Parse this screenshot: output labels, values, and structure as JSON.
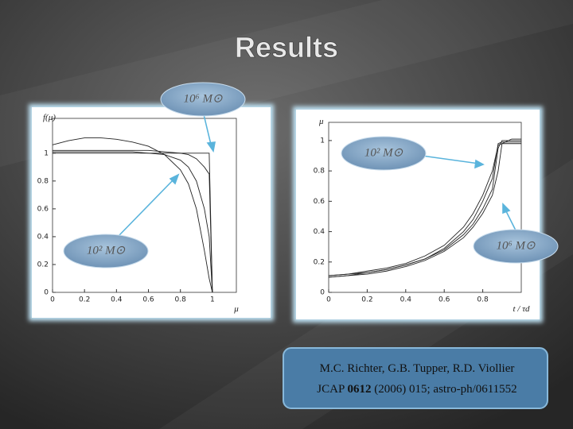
{
  "title": "Results",
  "chart_data": [
    {
      "type": "line",
      "ylabel": "f(μ)",
      "xlabel": "μ",
      "x": [
        0,
        0.1,
        0.2,
        0.3,
        0.4,
        0.5,
        0.6,
        0.7,
        0.8,
        0.85,
        0.9,
        0.95,
        0.98,
        1.0
      ],
      "series": [
        {
          "color": "#222222",
          "values": [
            1.0,
            1.0,
            1.0,
            1.0,
            1.0,
            1.0,
            1.0,
            1.0,
            1.0,
            1.0,
            1.0,
            1.0,
            1.0,
            0
          ]
        },
        {
          "color": "#222222",
          "values": [
            1.02,
            1.02,
            1.02,
            1.02,
            1.02,
            1.02,
            1.02,
            1.01,
            1.0,
            0.99,
            0.96,
            0.9,
            0.85,
            0
          ]
        },
        {
          "color": "#222222",
          "values": [
            1.01,
            1.01,
            1.01,
            1.01,
            1.01,
            1.01,
            1.0,
            0.99,
            0.95,
            0.9,
            0.8,
            0.6,
            0.4,
            0
          ]
        },
        {
          "color": "#222222",
          "values": [
            1.06,
            1.09,
            1.11,
            1.11,
            1.1,
            1.08,
            1.05,
            0.99,
            0.88,
            0.78,
            0.6,
            0.3,
            0.1,
            0
          ]
        }
      ],
      "xlim": [
        0,
        1.15
      ],
      "ylim": [
        0,
        1.25
      ],
      "xticks": [
        0,
        0.2,
        0.4,
        0.6,
        0.8,
        1
      ],
      "yticks": [
        0,
        0.2,
        0.4,
        0.6,
        0.8,
        1
      ]
    },
    {
      "type": "line",
      "ylabel": "μ",
      "xlabel": "t / τd",
      "x": [
        0,
        0.1,
        0.2,
        0.3,
        0.4,
        0.5,
        0.6,
        0.7,
        0.75,
        0.8,
        0.85,
        0.88,
        0.9,
        0.95,
        1.0
      ],
      "series": [
        {
          "color": "#222222",
          "values": [
            0.1,
            0.11,
            0.13,
            0.15,
            0.18,
            0.22,
            0.28,
            0.38,
            0.45,
            0.55,
            0.68,
            0.95,
            1.0,
            1.0,
            1.0
          ]
        },
        {
          "color": "#222222",
          "values": [
            0.11,
            0.12,
            0.13,
            0.15,
            0.18,
            0.22,
            0.29,
            0.4,
            0.48,
            0.6,
            0.75,
            0.98,
            0.99,
            0.99,
            0.99
          ]
        },
        {
          "color": "#222222",
          "values": [
            0.1,
            0.11,
            0.12,
            0.14,
            0.17,
            0.21,
            0.27,
            0.36,
            0.43,
            0.52,
            0.64,
            0.8,
            0.98,
            1.01,
            1.01
          ]
        },
        {
          "color": "#222222",
          "values": [
            0.11,
            0.12,
            0.14,
            0.16,
            0.19,
            0.24,
            0.31,
            0.43,
            0.52,
            0.64,
            0.8,
            0.97,
            0.98,
            0.98,
            0.98
          ]
        }
      ],
      "xlim": [
        0,
        1
      ],
      "ylim": [
        0,
        1.12
      ],
      "xticks": [
        0,
        0.2,
        0.4,
        0.6,
        0.8
      ],
      "yticks": [
        0,
        0.2,
        0.4,
        0.6,
        0.8,
        1
      ]
    }
  ],
  "callouts": [
    "10⁶ M⊙",
    "10² M⊙",
    "10² M⊙",
    "10⁶ M⊙"
  ],
  "citation": {
    "line1": "M.C. Richter, G.B. Tupper, R.D. Viollier",
    "line2": [
      "JCAP",
      "0612",
      "(2006) 015; astro-ph/0611552"
    ]
  }
}
